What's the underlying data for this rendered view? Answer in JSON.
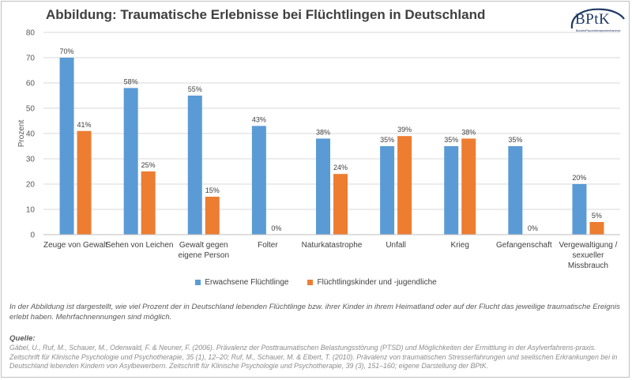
{
  "title": "Abbildung: Traumatische Erlebnisse bei Flüchtlingen in Deutschland",
  "logo": {
    "text": "BPtK",
    "subtext": "BundesPsychotherapeutenKammer"
  },
  "colors": {
    "adults": "#5b9bd5",
    "children": "#ed7d31",
    "grid": "#d9d9d9",
    "axis": "#bfbfbf"
  },
  "chart_data": {
    "type": "bar",
    "title": "Abbildung: Traumatische Erlebnisse bei Flüchtlingen in Deutschland",
    "xlabel": "",
    "ylabel": "Prozent",
    "ylim": [
      0,
      80
    ],
    "yticks": [
      0,
      10,
      20,
      30,
      40,
      50,
      60,
      70,
      80
    ],
    "grid": true,
    "legend_position": "bottom",
    "categories": [
      [
        "Zeuge von Gewalt"
      ],
      [
        "Sehen von Leichen"
      ],
      [
        "Gewalt gegen",
        "eigene Person"
      ],
      [
        "Folter"
      ],
      [
        "Naturkatastrophe"
      ],
      [
        "Unfall"
      ],
      [
        "Krieg"
      ],
      [
        "Gefangenschaft"
      ],
      [
        "Vergewaltigung /",
        "sexueller",
        "Missbrauch"
      ]
    ],
    "series": [
      {
        "name": "Erwachsene Flüchtlinge",
        "values": [
          70,
          58,
          55,
          43,
          38,
          35,
          35,
          35,
          20
        ],
        "labels": [
          "70%",
          "58%",
          "55%",
          "43%",
          "38%",
          "35%",
          "35%",
          "35%",
          "20%"
        ]
      },
      {
        "name": "Flüchtlingskinder und -jugendliche",
        "values": [
          41,
          25,
          15,
          0,
          24,
          39,
          38,
          0,
          5
        ],
        "labels": [
          "41%",
          "25%",
          "15%",
          "0%",
          "24%",
          "39%",
          "38%",
          "0%",
          "5%"
        ]
      }
    ]
  },
  "description": "In der Abbildung ist dargestellt, wie viel Prozent der in Deutschland lebenden Flüchtlinge bzw. ihrer Kinder in ihrem Heimatland oder auf der Flucht das jeweilige traumatische Ereignis erlebt haben. Mehrfachnennungen sind möglich.",
  "source": {
    "heading": "Quelle:",
    "text": "Gäbel, U., Ruf, M., Schauer, M., Odenwald, F. & Neuner, F. (2006). Prävalenz der Posttraumatischen Belastungsstörung (PTSD) und Möglichkeiten der Ermittlung in der Asylverfahrens-praxis. Zeitschrift für Klinische Psychologie und Psychotherapie, 35 (1), 12–20; Ruf, M., Schauer, M. & Elbert, T. (2010). Prävalenz von traumatischen Stresserfahrungen und seelischen Erkrankungen bei in Deutschland lebenden Kindern von Asylbewerbern. Zeitschrift für Klinische Psychologie und Psychotherapie, 39 (3), 151–160; eigene Darstellung der BPtK."
  }
}
